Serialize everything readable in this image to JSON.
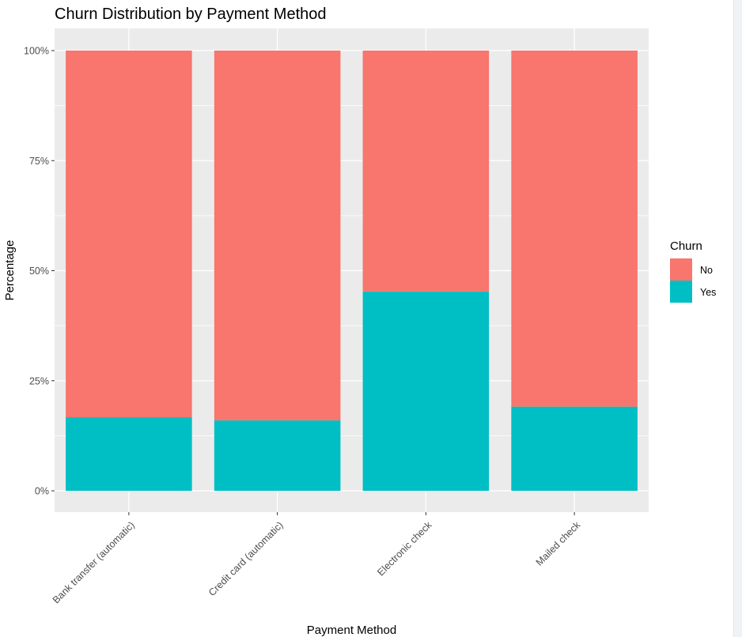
{
  "chart_data": {
    "type": "bar",
    "stacked": true,
    "normalized": true,
    "title": "Churn Distribution by Payment Method",
    "xlabel": "Payment Method",
    "ylabel": "Percentage",
    "ylim": [
      0,
      100
    ],
    "y_ticks": [
      "0%",
      "25%",
      "50%",
      "75%",
      "100%"
    ],
    "categories": [
      "Bank transfer (automatic)",
      "Credit card (automatic)",
      "Electronic check",
      "Mailed check"
    ],
    "series": [
      {
        "name": "No",
        "color": "#F8766D",
        "values": [
          83.3,
          84.0,
          54.7,
          80.9
        ]
      },
      {
        "name": "Yes",
        "color": "#00BFC4",
        "values": [
          16.7,
          16.0,
          45.3,
          19.1
        ]
      }
    ],
    "legend": {
      "title": "Churn",
      "placement": "right"
    },
    "grid": true,
    "panel_background": "#EBEBEB"
  }
}
